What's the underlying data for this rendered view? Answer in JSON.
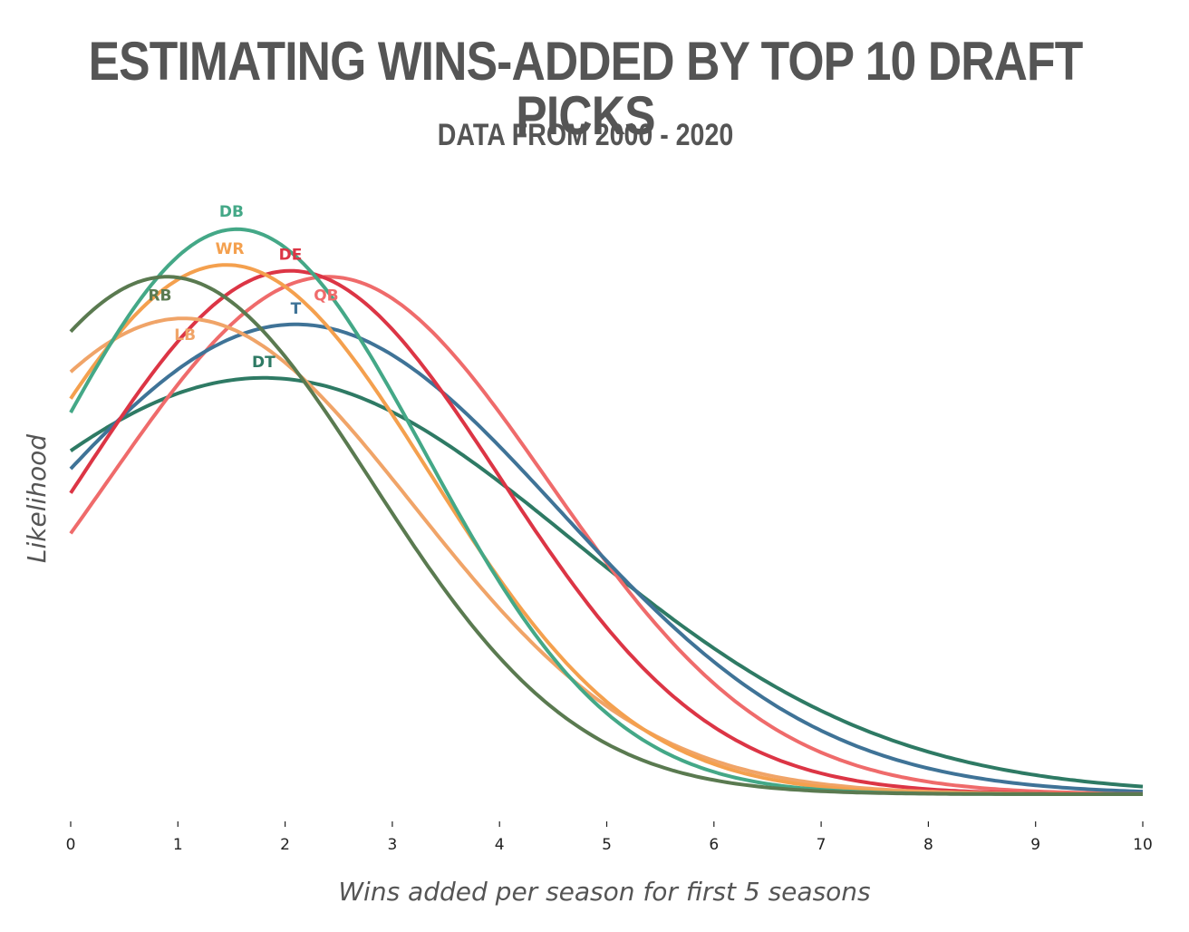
{
  "chart_data": {
    "type": "line",
    "title": "ESTIMATING WINS-ADDED BY TOP 10 DRAFT PICKS",
    "subtitle": "DATA FROM 2000 - 2020",
    "xlabel": "Wins added per season for first 5 seasons",
    "ylabel": "Likelihood",
    "xlim": [
      0,
      10
    ],
    "xticks": [
      "0",
      "1",
      "2",
      "3",
      "4",
      "5",
      "6",
      "7",
      "8",
      "9",
      "10"
    ],
    "grid": false,
    "legend": "inline labels",
    "series": [
      {
        "name": "DT",
        "color": "#2e7a64",
        "mean": 1.8,
        "sd": 2.9,
        "peak": 0.7
      },
      {
        "name": "QB",
        "color": "#ef6b6b",
        "mean": 2.4,
        "sd": 2.05,
        "peak": 0.87
      },
      {
        "name": "T",
        "color": "#3f7397",
        "mean": 2.1,
        "sd": 2.45,
        "peak": 0.79
      },
      {
        "name": "DE",
        "color": "#dc3545",
        "mean": 2.05,
        "sd": 1.95,
        "peak": 0.88
      },
      {
        "name": "LB",
        "color": "#f0a468",
        "mean": 1.05,
        "sd": 2.15,
        "peak": 0.8
      },
      {
        "name": "WR",
        "color": "#f4a04e",
        "mean": 1.45,
        "sd": 1.9,
        "peak": 0.89
      },
      {
        "name": "DB",
        "color": "#44a887",
        "mean": 1.55,
        "sd": 1.75,
        "peak": 0.95
      },
      {
        "name": "RB",
        "color": "#5a7a50",
        "mean": 0.9,
        "sd": 1.9,
        "peak": 0.87
      }
    ]
  }
}
